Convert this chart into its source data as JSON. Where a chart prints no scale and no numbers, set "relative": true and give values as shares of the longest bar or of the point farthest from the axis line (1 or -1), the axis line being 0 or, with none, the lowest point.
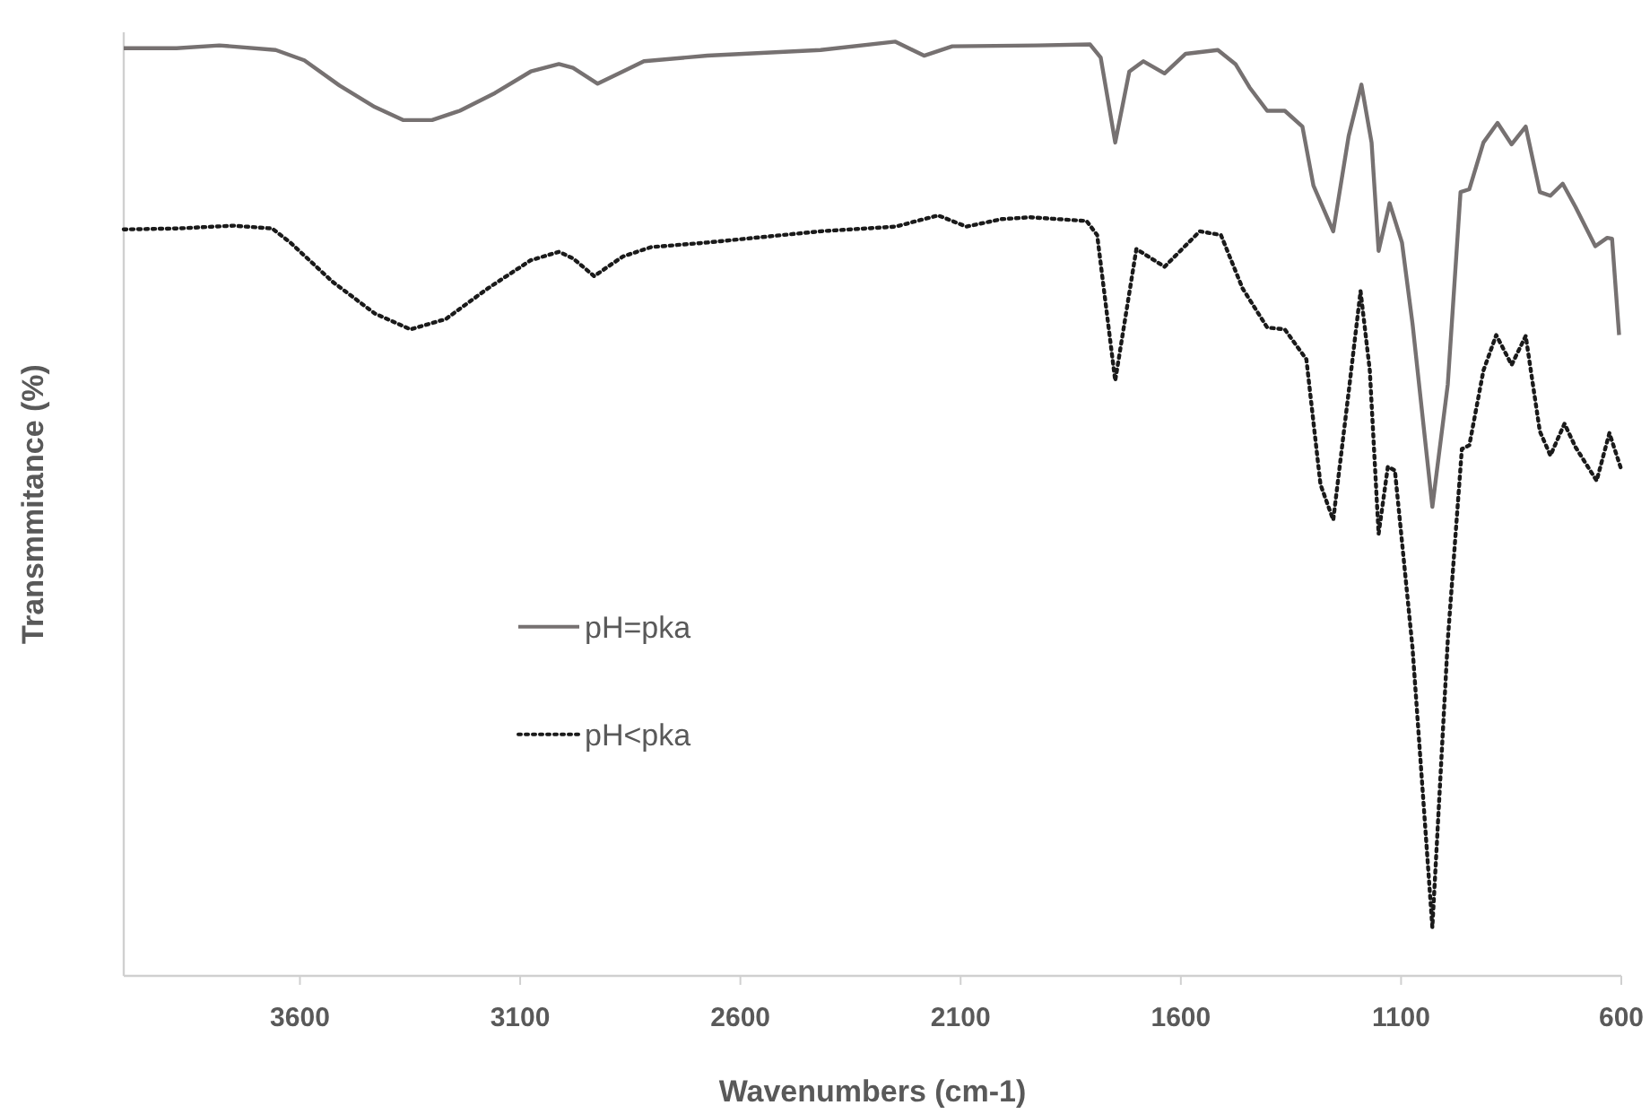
{
  "chart_data": {
    "type": "line",
    "relative": true,
    "xlabel": "Wavenumbers (cm-1)",
    "ylabel": "Transmmitance (%)",
    "xlim": [
      4000,
      600
    ],
    "xticks": [
      3600,
      3100,
      2600,
      2100,
      1600,
      1100,
      600
    ],
    "legend": "left",
    "grid": false,
    "marker": "none",
    "series": [
      {
        "name": "pH=pka",
        "color": "#767171",
        "line_style": "solid",
        "x": [
          4000,
          3880,
          3783,
          3655,
          3590,
          3510,
          3430,
          3365,
          3300,
          3237,
          3157,
          3076,
          3012,
          2980,
          2924,
          2867,
          2819,
          2675,
          2418,
          2248,
          2183,
          2119,
          1926,
          1806,
          1782,
          1749,
          1717,
          1685,
          1637,
          1589,
          1516,
          1476,
          1444,
          1404,
          1364,
          1324,
          1299,
          1254,
          1219,
          1190,
          1167,
          1151,
          1126,
          1098,
          1074,
          1029,
          994,
          965,
          945,
          913,
          881,
          849,
          817,
          785,
          761,
          733,
          704,
          659,
          632,
          621,
          605
        ],
        "values": [
          0.993,
          0.993,
          0.996,
          0.991,
          0.98,
          0.953,
          0.93,
          0.916,
          0.916,
          0.926,
          0.945,
          0.968,
          0.976,
          0.972,
          0.955,
          0.968,
          0.979,
          0.985,
          0.991,
          1.0,
          0.985,
          0.995,
          0.996,
          0.997,
          0.983,
          0.892,
          0.968,
          0.979,
          0.966,
          0.987,
          0.991,
          0.976,
          0.951,
          0.926,
          0.926,
          0.909,
          0.846,
          0.797,
          0.899,
          0.954,
          0.892,
          0.776,
          0.827,
          0.785,
          0.698,
          0.502,
          0.633,
          0.839,
          0.842,
          0.892,
          0.913,
          0.89,
          0.909,
          0.839,
          0.835,
          0.848,
          0.823,
          0.781,
          0.79,
          0.789,
          0.686
        ]
      },
      {
        "name": "pH<pka",
        "color": "#1a1a1a",
        "line_style": "dotted",
        "x": [
          4000,
          3880,
          3751,
          3663,
          3622,
          3526,
          3430,
          3349,
          3269,
          3173,
          3076,
          3012,
          2980,
          2932,
          2867,
          2803,
          2675,
          2418,
          2248,
          2151,
          2087,
          2007,
          1942,
          1814,
          1790,
          1749,
          1701,
          1637,
          1557,
          1509,
          1460,
          1404,
          1364,
          1315,
          1283,
          1254,
          1219,
          1192,
          1171,
          1151,
          1130,
          1114,
          1074,
          1029,
          994,
          962,
          945,
          913,
          884,
          849,
          817,
          785,
          761,
          729,
          704,
          656,
          627,
          600
        ],
        "values": [
          0.799,
          0.8,
          0.803,
          0.8,
          0.785,
          0.743,
          0.709,
          0.692,
          0.703,
          0.736,
          0.766,
          0.775,
          0.768,
          0.749,
          0.77,
          0.78,
          0.785,
          0.797,
          0.802,
          0.814,
          0.802,
          0.81,
          0.812,
          0.808,
          0.793,
          0.637,
          0.778,
          0.759,
          0.797,
          0.793,
          0.736,
          0.694,
          0.692,
          0.66,
          0.526,
          0.488,
          0.625,
          0.733,
          0.648,
          0.473,
          0.545,
          0.541,
          0.351,
          0.052,
          0.359,
          0.564,
          0.568,
          0.648,
          0.686,
          0.654,
          0.685,
          0.583,
          0.557,
          0.591,
          0.566,
          0.53,
          0.581,
          0.542
        ]
      }
    ]
  }
}
